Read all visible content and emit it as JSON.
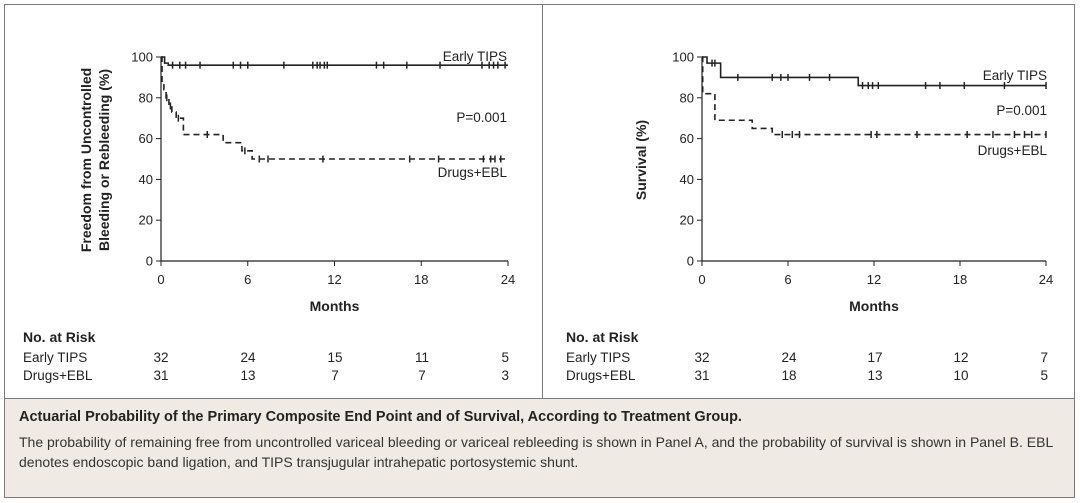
{
  "chart_data": [
    {
      "type": "line",
      "panel": "A",
      "title": "",
      "xlabel": "Months",
      "ylabel": "Freedom from Uncontrolled Bleeding or Rebleeding (%)",
      "ylabel_lines": [
        "Freedom from Uncontrolled",
        "Bleeding or Rebleeding (%)"
      ],
      "xlim": [
        0,
        24
      ],
      "ylim": [
        0,
        100
      ],
      "xticks": [
        0,
        6,
        12,
        18,
        24
      ],
      "yticks": [
        0,
        20,
        40,
        60,
        80,
        100
      ],
      "p_value": "P=0.001",
      "series": [
        {
          "name": "Early TIPS",
          "style": "solid",
          "steps": [
            [
              0,
              100
            ],
            [
              0.25,
              97
            ],
            [
              0.5,
              96
            ],
            [
              24,
              96
            ]
          ],
          "censored": [
            0.8,
            1.3,
            1.7,
            2.7,
            5.0,
            5.5,
            6.0,
            8.5,
            10.5,
            10.8,
            11.0,
            11.3,
            11.5,
            14.9,
            15.4,
            17.0,
            19.3,
            22.2,
            22.7,
            23.0,
            23.3,
            23.8
          ]
        },
        {
          "name": "Drugs+EBL",
          "style": "dashed",
          "steps": [
            [
              0,
              100
            ],
            [
              0.07,
              87
            ],
            [
              0.2,
              84
            ],
            [
              0.35,
              80
            ],
            [
              0.55,
              76
            ],
            [
              0.75,
              73
            ],
            [
              1.05,
              70
            ],
            [
              1.55,
              62
            ],
            [
              4.3,
              58
            ],
            [
              5.6,
              54
            ],
            [
              6.3,
              50
            ],
            [
              24,
              50
            ]
          ],
          "censored": [
            0.4,
            0.65,
            1.2,
            3.2,
            5.8,
            6.8,
            7.4,
            11.2,
            17.2,
            19.2,
            22.3,
            22.8,
            23.1,
            23.5
          ]
        }
      ],
      "risk_table": {
        "title": "No. at Risk",
        "rows": [
          {
            "label": "Early TIPS",
            "values": [
              32,
              24,
              15,
              11,
              5
            ]
          },
          {
            "label": "Drugs+EBL",
            "values": [
              31,
              13,
              7,
              7,
              3
            ]
          }
        ]
      }
    },
    {
      "type": "line",
      "panel": "B",
      "title": "",
      "xlabel": "Months",
      "ylabel": "Survival (%)",
      "ylabel_lines": [
        "Survival (%)"
      ],
      "xlim": [
        0,
        24
      ],
      "ylim": [
        0,
        100
      ],
      "xticks": [
        0,
        6,
        12,
        18,
        24
      ],
      "yticks": [
        0,
        20,
        40,
        60,
        80,
        100
      ],
      "p_value": "P=0.001",
      "series": [
        {
          "name": "Early TIPS",
          "style": "solid",
          "steps": [
            [
              0,
              100
            ],
            [
              0.35,
              97
            ],
            [
              1.3,
              90
            ],
            [
              10.9,
              86
            ],
            [
              24,
              86
            ]
          ],
          "censored": [
            0.7,
            0.9,
            2.5,
            4.9,
            5.5,
            6.0,
            7.5,
            8.9,
            11.2,
            11.6,
            11.9,
            12.3,
            15.6,
            16.6,
            18.3,
            21.1,
            24.0
          ]
        },
        {
          "name": "Drugs+EBL",
          "style": "dashed",
          "steps": [
            [
              0,
              100
            ],
            [
              0.05,
              82
            ],
            [
              0.9,
              69
            ],
            [
              3.5,
              65
            ],
            [
              4.9,
              62
            ],
            [
              24,
              62
            ]
          ],
          "censored": [
            5.6,
            6.3,
            6.8,
            11.8,
            12.2,
            15.0,
            18.5,
            20.3,
            21.8,
            22.5,
            23.0,
            24.0
          ]
        }
      ],
      "risk_table": {
        "title": "No. at Risk",
        "rows": [
          {
            "label": "Early TIPS",
            "values": [
              32,
              24,
              17,
              12,
              7
            ]
          },
          {
            "label": "Drugs+EBL",
            "values": [
              31,
              18,
              13,
              10,
              5
            ]
          }
        ]
      }
    }
  ],
  "caption": {
    "title": "Actuarial Probability of the Primary Composite End Point and of Survival, According to Treatment Group.",
    "text": "The probability of remaining free from uncontrolled variceal bleeding or variceal rebleeding is shown in Panel A, and the probability of survival is shown in Panel B. EBL denotes endoscopic band ligation, and TIPS transjugular intrahepatic portosystemic shunt."
  }
}
